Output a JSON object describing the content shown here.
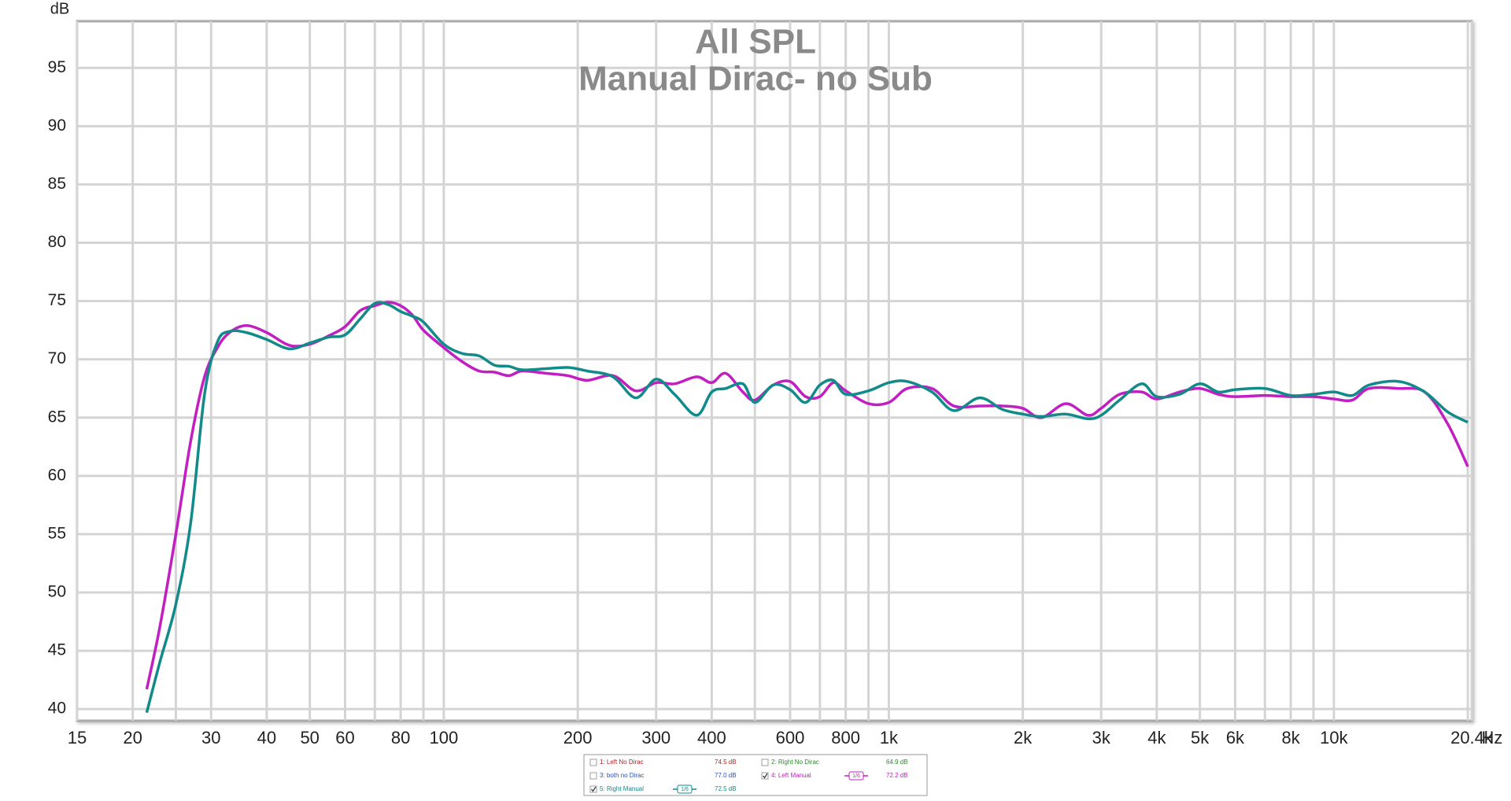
{
  "chart_data": {
    "type": "line",
    "title": "All SPL",
    "subtitle": "Manual Dirac- no Sub",
    "y_label": "dB",
    "x_unit": "Hz",
    "log_x": true,
    "grid": true,
    "xlim": [
      15,
      20400
    ],
    "ylim": [
      39,
      99
    ],
    "xticks": [
      15,
      20,
      30,
      40,
      50,
      60,
      80,
      100,
      200,
      300,
      400,
      600,
      800,
      {
        "value": 1000,
        "label": "1k"
      },
      {
        "value": 2000,
        "label": "2k"
      },
      {
        "value": 3000,
        "label": "3k"
      },
      {
        "value": 4000,
        "label": "4k"
      },
      {
        "value": 5000,
        "label": "5k"
      },
      {
        "value": 6000,
        "label": "6k"
      },
      {
        "value": 8000,
        "label": "8k"
      },
      {
        "value": 10000,
        "label": "10k"
      },
      {
        "value": 20400,
        "label": "20.4k"
      }
    ],
    "xminor": [
      25,
      70,
      90,
      500,
      700,
      900,
      7000,
      9000,
      20000
    ],
    "yticks": [
      40,
      45,
      50,
      55,
      60,
      65,
      70,
      75,
      80,
      85,
      90,
      95
    ],
    "x": [
      21.5,
      23,
      25,
      27,
      29,
      31,
      33,
      36,
      40,
      45,
      50,
      55,
      60,
      65,
      70,
      75,
      80,
      85,
      90,
      100,
      110,
      120,
      130,
      140,
      150,
      170,
      190,
      210,
      240,
      270,
      300,
      330,
      370,
      400,
      430,
      470,
      500,
      550,
      600,
      650,
      700,
      750,
      800,
      900,
      1000,
      1100,
      1250,
      1400,
      1600,
      1800,
      2000,
      2200,
      2500,
      2800,
      3000,
      3300,
      3700,
      4000,
      4500,
      5000,
      5500,
      6000,
      7000,
      8000,
      9000,
      10000,
      11000,
      12000,
      14000,
      16000,
      18000,
      20000
    ],
    "series": [
      {
        "name": "4: Left Manual",
        "color": "#c21fc2",
        "level": "72.2 dB",
        "smoothing": "1/6",
        "checked": true,
        "values": [
          41.7,
          47,
          55,
          63,
          68.5,
          71,
          72.3,
          72.9,
          72.3,
          71.2,
          71.3,
          72,
          72.8,
          74.2,
          74.6,
          74.9,
          74.6,
          73.8,
          72.5,
          71,
          69.8,
          69,
          68.9,
          68.6,
          69,
          68.8,
          68.6,
          68.2,
          68.6,
          67.3,
          68,
          67.9,
          68.5,
          68,
          68.8,
          67.2,
          66.5,
          67.8,
          68.1,
          66.8,
          66.8,
          68,
          67.3,
          66.2,
          66.3,
          67.5,
          67.5,
          66,
          66,
          66,
          65.8,
          65,
          66.2,
          65.2,
          65.8,
          67,
          67.2,
          66.6,
          67.2,
          67.5,
          67,
          66.8,
          66.9,
          66.8,
          66.8,
          66.6,
          66.5,
          67.5,
          67.5,
          67.2,
          64.5,
          60.8
        ]
      },
      {
        "name": "5: Right Manual",
        "color": "#138a8a",
        "level": "72.5 dB",
        "smoothing": "1/6",
        "checked": true,
        "values": [
          39.7,
          44,
          49,
          56,
          67,
          71.5,
          72.4,
          72.3,
          71.7,
          70.9,
          71.4,
          71.9,
          72.1,
          73.5,
          74.8,
          74.7,
          74.1,
          73.7,
          73.2,
          71.3,
          70.5,
          70.3,
          69.5,
          69.4,
          69.1,
          69.2,
          69.3,
          69,
          68.5,
          66.7,
          68.3,
          67,
          65.2,
          67.2,
          67.5,
          67.9,
          66.3,
          67.8,
          67.4,
          66.3,
          67.8,
          68.2,
          67,
          67.3,
          68,
          68.1,
          67.2,
          65.6,
          66.7,
          65.7,
          65.3,
          65.1,
          65.3,
          64.9,
          65.2,
          66.5,
          67.9,
          66.8,
          67,
          67.9,
          67.2,
          67.4,
          67.5,
          66.9,
          67,
          67.2,
          66.9,
          67.8,
          68.1,
          67.2,
          65.5,
          64.6
        ]
      }
    ],
    "hidden_series": [
      {
        "name": "1: Left No Dirac",
        "color": "#b02020",
        "level": "74.5 dB",
        "checked": false
      },
      {
        "name": "2: Right No Dirac",
        "color": "#2a8a2a",
        "level": "64.9 dB",
        "checked": false
      },
      {
        "name": "3: both no Dirac",
        "color": "#3050b0",
        "level": "77.0 dB",
        "checked": false
      }
    ]
  }
}
